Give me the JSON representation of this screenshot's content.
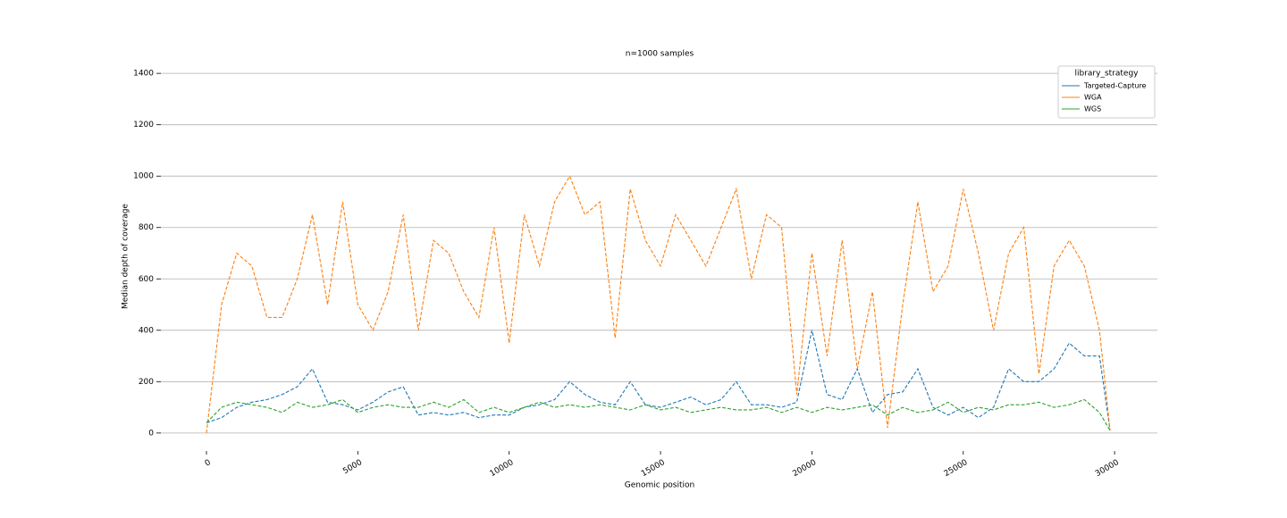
{
  "chart_data": {
    "type": "line",
    "title": "n=1000 samples",
    "x_label": "Genomic position",
    "y_label": "Median depth of coverage",
    "x": [
      0,
      500,
      1000,
      1500,
      2000,
      2500,
      3000,
      3500,
      4000,
      4500,
      5000,
      5500,
      6000,
      6500,
      7000,
      7500,
      8000,
      8500,
      9000,
      9500,
      10000,
      10500,
      11000,
      11500,
      12000,
      12500,
      13000,
      13500,
      14000,
      14500,
      15000,
      15500,
      16000,
      16500,
      17000,
      17500,
      18000,
      18500,
      19000,
      19500,
      20000,
      20500,
      21000,
      21500,
      22000,
      22500,
      23000,
      23500,
      24000,
      24500,
      25000,
      25500,
      26000,
      26500,
      27000,
      27500,
      28000,
      28500,
      29000,
      29500,
      29850
    ],
    "series": [
      {
        "name": "Targeted-Capture",
        "color": "#1f77b4",
        "values": [
          40,
          60,
          100,
          120,
          130,
          150,
          180,
          250,
          120,
          110,
          90,
          120,
          160,
          180,
          70,
          80,
          70,
          80,
          60,
          70,
          70,
          100,
          110,
          130,
          200,
          150,
          120,
          110,
          200,
          110,
          100,
          120,
          140,
          110,
          130,
          200,
          110,
          110,
          100,
          120,
          400,
          150,
          130,
          250,
          80,
          150,
          160,
          250,
          100,
          70,
          100,
          60,
          100,
          250,
          200,
          200,
          250,
          350,
          300,
          300,
          10
        ]
      },
      {
        "name": "WGA",
        "color": "#ff7f0e",
        "values": [
          0,
          500,
          700,
          650,
          450,
          450,
          600,
          850,
          500,
          900,
          500,
          400,
          550,
          850,
          400,
          750,
          700,
          550,
          450,
          800,
          350,
          850,
          650,
          900,
          1000,
          850,
          900,
          370,
          950,
          750,
          650,
          850,
          750,
          650,
          800,
          950,
          600,
          850,
          800,
          150,
          700,
          300,
          750,
          250,
          550,
          20,
          500,
          900,
          550,
          650,
          950,
          700,
          400,
          700,
          800,
          230,
          650,
          750,
          650,
          400,
          10
        ]
      },
      {
        "name": "WGS",
        "color": "#2ca02c",
        "values": [
          40,
          100,
          120,
          110,
          100,
          80,
          120,
          100,
          110,
          130,
          80,
          100,
          110,
          100,
          100,
          120,
          100,
          130,
          80,
          100,
          80,
          100,
          120,
          100,
          110,
          100,
          110,
          100,
          90,
          110,
          90,
          100,
          80,
          90,
          100,
          90,
          90,
          100,
          80,
          100,
          80,
          100,
          90,
          100,
          110,
          70,
          100,
          80,
          90,
          120,
          80,
          100,
          90,
          110,
          110,
          120,
          100,
          110,
          130,
          80,
          10
        ]
      }
    ],
    "xlim": [
      -1506,
      31414
    ],
    "ylim": [
      -70,
      1470
    ],
    "xticks": [
      0,
      5000,
      10000,
      15000,
      20000,
      25000,
      30000
    ],
    "yticks": [
      0,
      200,
      400,
      600,
      800,
      1000,
      1200,
      1400
    ],
    "grid": true,
    "line_style": "dashed",
    "legend_title": "library_strategy",
    "legend_position": "upper right"
  }
}
